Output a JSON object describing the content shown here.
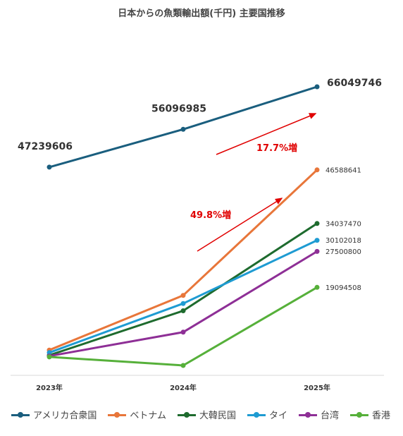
{
  "chart_data": {
    "type": "line",
    "title": "日本からの魚類輸出額(千円) 主要国推移",
    "categories": [
      "2023年",
      "2024年",
      "2025年"
    ],
    "ylim": [
      0,
      70000000
    ],
    "grid": false,
    "legend_position": "bottom",
    "series": [
      {
        "name": "アメリカ合衆国",
        "color": "#1a5e7e",
        "values": [
          47239606,
          56096985,
          66049746
        ],
        "labels": [
          "47239606",
          "56096985",
          "66049746"
        ]
      },
      {
        "name": "ベトナム",
        "color": "#e8763a",
        "values": [
          4400000,
          17200000,
          46588641
        ],
        "labels": [
          "",
          "",
          "46588641"
        ]
      },
      {
        "name": "大韓民国",
        "color": "#1e6b2e",
        "values": [
          3200000,
          13600000,
          34037470
        ],
        "labels": [
          "",
          "",
          "34037470"
        ]
      },
      {
        "name": "タイ",
        "color": "#1e9bd2",
        "values": [
          3800000,
          15300000,
          30102018
        ],
        "labels": [
          "",
          "",
          "30102018"
        ]
      },
      {
        "name": "台湾",
        "color": "#8e2f96",
        "values": [
          3000000,
          8600000,
          27500800
        ],
        "labels": [
          "",
          "",
          "27500800"
        ]
      },
      {
        "name": "香港",
        "color": "#56b03a",
        "values": [
          2800000,
          800000,
          19094508
        ],
        "labels": [
          "",
          "",
          "19094508"
        ]
      }
    ],
    "annotations": [
      {
        "text": "17.7%増",
        "color": "#e00000"
      },
      {
        "text": "49.8%増",
        "color": "#e00000"
      }
    ]
  }
}
